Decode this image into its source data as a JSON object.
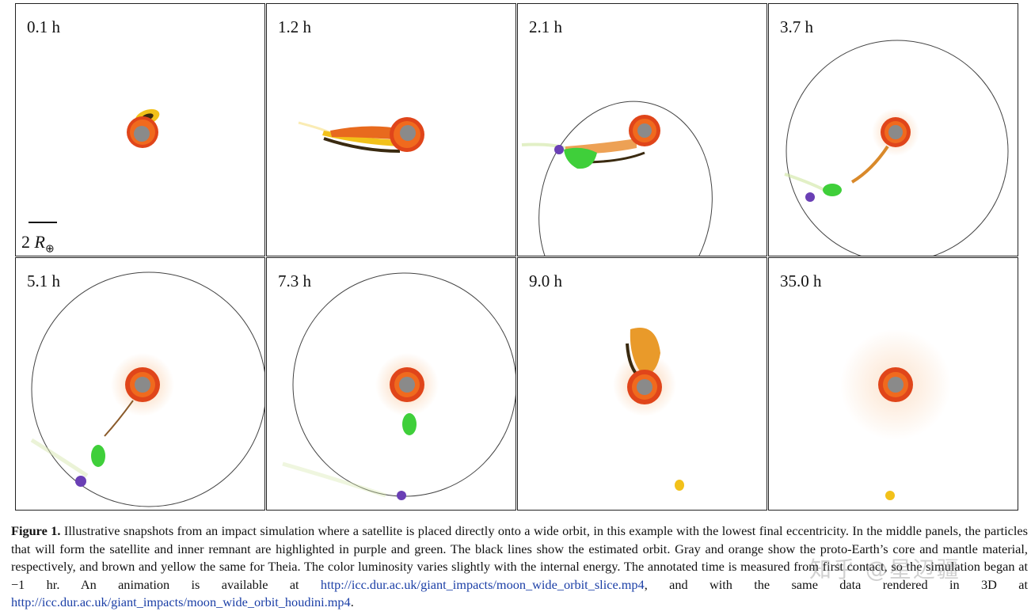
{
  "panels": [
    {
      "time": "0.1 h"
    },
    {
      "time": "1.2 h"
    },
    {
      "time": "2.1 h"
    },
    {
      "time": "3.7 h"
    },
    {
      "time": "5.1 h"
    },
    {
      "time": "7.3 h"
    },
    {
      "time": "9.0 h"
    },
    {
      "time": "35.0 h"
    }
  ],
  "scale_bar": {
    "number": "2",
    "symbol": "R",
    "subscript": "⊕"
  },
  "caption": {
    "label": "Figure 1.",
    "text_1": " Illustrative snapshots from an impact simulation where a satellite is placed directly onto a wide orbit, in this example with the lowest final eccentricity. In the middle panels, the particles that will form the satellite and inner remnant are highlighted in purple and green. The black lines show the estimated orbit. Gray and orange show the proto-Earth’s core and mantle material, respectively, and brown and yellow the same for Theia. The color luminosity varies slightly with the internal energy. The annotated time is measured from first contact, so the simulation began at −1 hr. An animation is available at ",
    "link_1": "http://icc.dur.ac.uk/giant_impacts/moon_wide_orbit_slice.mp4",
    "text_2": ", and with the same data rendered in 3D at ",
    "link_2": "http://icc.dur.ac.uk/giant_impacts/moon_wide_orbit_houdini.mp4",
    "text_3": "."
  },
  "watermark": "知乎 @星辺疆",
  "colors": {
    "core_gray": "#8a8a8a",
    "mantle_orange": "#f06a1e",
    "mantle_red": "#e0451a",
    "theia_yellow": "#f2c11a",
    "theia_brown": "#5a3a12",
    "satellite_purple": "#6a3fb5",
    "remnant_green": "#3fcf3a",
    "orbit_line": "#444444"
  }
}
